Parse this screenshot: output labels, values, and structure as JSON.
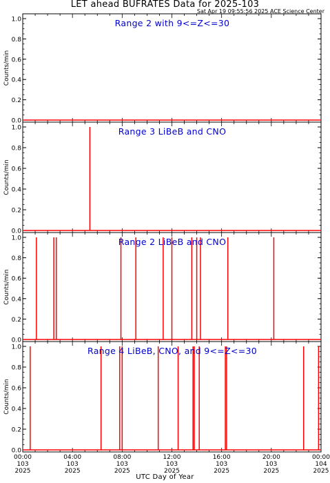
{
  "title": "LET ahead BUFRATES Data for 2025-103",
  "timestamp": "Sat Apr 19 09:55:56 2025 ACE Science Center",
  "xlabel": "UTC Day of Year",
  "colors": {
    "data": "#ff0000",
    "panel_title": "#0000cc",
    "axis": "#000000"
  },
  "chart_data": [
    {
      "type": "line",
      "title": "Range 2 with 9<=Z<=30",
      "ylabel": "Counts/min",
      "ylim": [
        0,
        1.0
      ],
      "yticks": [
        "0.0",
        "0.2",
        "0.4",
        "0.6",
        "0.8",
        "1.0"
      ],
      "xlim": [
        0,
        24
      ],
      "spikes_at_hours": []
    },
    {
      "type": "line",
      "title": "Range 3 LiBeB and CNO",
      "ylabel": "Counts/min",
      "ylim": [
        0,
        1.0
      ],
      "yticks": [
        "0.0",
        "0.2",
        "0.4",
        "0.6",
        "0.8",
        "1.0"
      ],
      "xlim": [
        0,
        24
      ],
      "spikes_at_hours": [
        5.4
      ]
    },
    {
      "type": "line",
      "title": "Range 2 LiBeB and CNO",
      "ylabel": "Counts/min",
      "ylim": [
        0,
        1.0
      ],
      "yticks": [
        "0.0",
        "0.2",
        "0.4",
        "0.6",
        "0.8",
        "1.0"
      ],
      "xlim": [
        0,
        24
      ],
      "spikes_at_hours": [
        1.1,
        2.5,
        2.7,
        7.9,
        9.1,
        11.3,
        12.0,
        13.6,
        14.0,
        14.3,
        16.5,
        20.2
      ]
    },
    {
      "type": "line",
      "title": "Range 4 LiBeB, CNO, and 9<=Z<=30",
      "ylabel": "Counts/min",
      "ylim": [
        0,
        1.0
      ],
      "yticks": [
        "0.0",
        "0.2",
        "0.4",
        "0.6",
        "0.8",
        "1.0"
      ],
      "xlim": [
        0,
        24
      ],
      "spikes_at_hours": [
        0.6,
        6.3,
        7.8,
        8.0,
        10.9,
        12.5,
        13.7,
        13.8,
        14.2,
        16.3,
        16.4,
        22.6,
        23.8
      ],
      "xticks": [
        {
          "hour": 0,
          "time": "00:00",
          "doy": "103",
          "year": "2025"
        },
        {
          "hour": 4,
          "time": "04:00",
          "doy": "103",
          "year": "2025"
        },
        {
          "hour": 8,
          "time": "08:00",
          "doy": "103",
          "year": "2025"
        },
        {
          "hour": 12,
          "time": "12:00",
          "doy": "103",
          "year": "2025"
        },
        {
          "hour": 16,
          "time": "16:00",
          "doy": "103",
          "year": "2025"
        },
        {
          "hour": 20,
          "time": "20:00",
          "doy": "103",
          "year": "2025"
        },
        {
          "hour": 24,
          "time": "00:00",
          "doy": "104",
          "year": "2025"
        }
      ]
    }
  ]
}
